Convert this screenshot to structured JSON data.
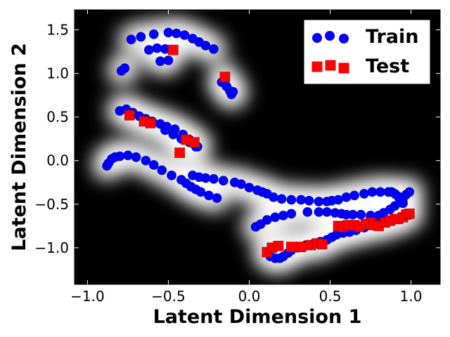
{
  "chart_data": {
    "type": "scatter",
    "title": "",
    "xlabel": "Latent Dimension 1",
    "ylabel": "Latent Dimension 2",
    "xlim": [
      -1.08,
      1.18
    ],
    "ylim": [
      -1.42,
      1.73
    ],
    "xticks": [
      -1.0,
      -0.5,
      0.0,
      0.5,
      1.0
    ],
    "yticks": [
      -1.0,
      -0.5,
      0.0,
      0.5,
      1.0,
      1.5
    ],
    "xtick_labels": [
      "−1.0",
      "−0.5",
      "0.0",
      "0.5",
      "1.0"
    ],
    "ytick_labels": [
      "−1.0",
      "−0.5",
      "0.0",
      "0.5",
      "1.0",
      "1.5"
    ],
    "grid": false,
    "legend_position": "top-right",
    "background": "density heatmap (white high density, black low density)",
    "series": [
      {
        "name": "Train",
        "marker": "circle",
        "color": "#0000ff",
        "x": [
          -0.73,
          -0.67,
          -0.59,
          -0.5,
          -0.45,
          -0.4,
          -0.35,
          -0.31,
          -0.27,
          -0.22,
          -0.62,
          -0.57,
          -0.52,
          -0.55,
          -0.5,
          -0.79,
          -0.77,
          -0.17,
          -0.14,
          -0.12,
          -0.11,
          -0.1,
          -0.8,
          -0.76,
          -0.72,
          -0.68,
          -0.64,
          -0.6,
          -0.55,
          -0.51,
          -0.46,
          -0.41,
          -0.37,
          -0.32,
          -0.52,
          -0.47,
          -0.42,
          -0.37,
          -0.33,
          -0.88,
          -0.87,
          -0.85,
          -0.83,
          -0.8,
          -0.75,
          -0.7,
          -0.64,
          -0.59,
          -0.54,
          -0.48,
          -0.42,
          -0.39,
          -0.36,
          -0.33,
          -0.3,
          -0.25,
          -0.2,
          -0.35,
          -0.31,
          -0.27,
          -0.22,
          -0.16,
          -0.09,
          -0.05,
          0.0,
          0.05,
          0.08,
          0.11,
          0.15,
          0.2,
          0.26,
          0.32,
          0.37,
          0.43,
          0.48,
          0.51,
          0.55,
          0.6,
          0.65,
          0.71,
          0.76,
          0.81,
          0.86,
          0.88,
          0.9,
          0.92,
          0.94,
          0.95,
          0.04,
          0.07,
          0.11,
          0.16,
          0.21,
          0.26,
          0.36,
          0.43,
          0.48,
          0.53,
          0.57,
          0.6,
          0.64,
          0.69,
          0.75,
          0.8,
          0.83,
          0.87,
          0.9,
          0.93,
          0.95,
          0.97,
          0.99,
          0.13,
          0.16,
          0.19,
          0.21,
          0.24,
          0.26,
          0.3,
          0.35,
          0.4,
          0.44,
          0.48,
          0.51,
          0.54,
          0.58,
          0.62,
          0.66,
          0.71,
          0.75,
          0.8
        ],
        "y": [
          1.39,
          1.42,
          1.45,
          1.47,
          1.46,
          1.44,
          1.4,
          1.36,
          1.32,
          1.28,
          1.27,
          1.29,
          1.28,
          1.14,
          1.15,
          1.03,
          1.06,
          0.9,
          0.85,
          0.8,
          0.76,
          0.79,
          0.57,
          0.59,
          0.55,
          0.51,
          0.48,
          0.45,
          0.42,
          0.39,
          0.36,
          0.3,
          0.24,
          0.16,
          0.35,
          0.3,
          0.25,
          0.21,
          0.16,
          -0.06,
          -0.03,
          0.02,
          0.04,
          0.05,
          0.06,
          0.04,
          0.0,
          -0.05,
          -0.11,
          -0.17,
          -0.22,
          -0.26,
          -0.3,
          -0.33,
          -0.36,
          -0.4,
          -0.43,
          -0.17,
          -0.19,
          -0.2,
          -0.21,
          -0.23,
          -0.25,
          -0.27,
          -0.31,
          -0.34,
          -0.36,
          -0.38,
          -0.42,
          -0.44,
          -0.45,
          -0.45,
          -0.46,
          -0.47,
          -0.47,
          -0.46,
          -0.45,
          -0.42,
          -0.4,
          -0.38,
          -0.36,
          -0.36,
          -0.36,
          -0.36,
          -0.38,
          -0.41,
          -0.44,
          -0.49,
          -0.76,
          -0.73,
          -0.68,
          -0.65,
          -0.63,
          -0.61,
          -0.59,
          -0.59,
          -0.59,
          -0.6,
          -0.61,
          -0.62,
          -0.62,
          -0.62,
          -0.63,
          -0.63,
          -0.6,
          -0.56,
          -0.52,
          -0.48,
          -0.44,
          -0.39,
          -0.36,
          -1.1,
          -1.12,
          -1.12,
          -1.1,
          -1.06,
          -1.03,
          -1.0,
          -0.97,
          -0.95,
          -0.93,
          -0.91,
          -0.88,
          -0.85,
          -0.83,
          -0.82,
          -0.8,
          -0.77,
          -0.73,
          -0.7
        ]
      },
      {
        "name": "Test",
        "marker": "square",
        "color": "#ff0000",
        "x": [
          -0.47,
          -0.15,
          -0.39,
          -0.34,
          -0.74,
          -0.65,
          -0.61,
          -0.43,
          0.11,
          0.14,
          0.18,
          0.26,
          0.32,
          0.38,
          0.42,
          0.45,
          0.55,
          0.58,
          0.61,
          0.65,
          0.68,
          0.72,
          0.75,
          0.77,
          0.8,
          0.84,
          0.87,
          0.9,
          0.92,
          0.95,
          0.97,
          0.99
        ],
        "y": [
          1.27,
          0.96,
          0.24,
          0.21,
          0.52,
          0.45,
          0.43,
          0.09,
          -1.05,
          -1.0,
          -0.98,
          -0.99,
          -0.99,
          -0.97,
          -0.95,
          -0.96,
          -0.75,
          -0.76,
          -0.74,
          -0.74,
          -0.76,
          -0.73,
          -0.71,
          -0.74,
          -0.75,
          -0.71,
          -0.69,
          -0.67,
          -0.67,
          -0.65,
          -0.62,
          -0.61
        ]
      }
    ]
  }
}
